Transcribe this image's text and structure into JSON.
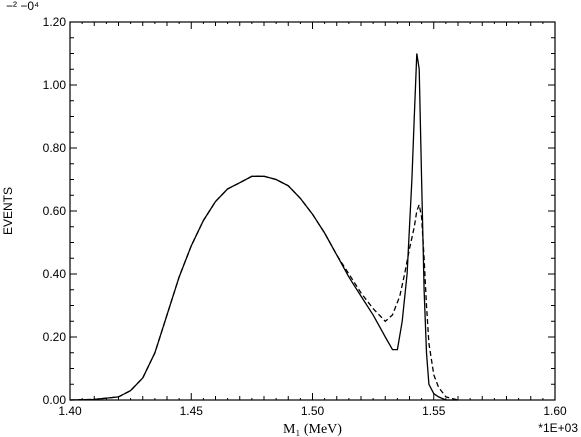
{
  "chart_data": {
    "type": "line",
    "xlabel": "M₁ (MeV)",
    "ylabel": "EVENTS",
    "y_scale_note": "−² −0⁴",
    "x_scale_note": "*1E+03",
    "xlim": [
      1.4,
      1.6
    ],
    "ylim": [
      0.0,
      1.2
    ],
    "x_ticks": [
      "1.40",
      "1.45",
      "1.50",
      "1.55",
      "1.60"
    ],
    "x_tick_values": [
      1.4,
      1.45,
      1.5,
      1.55,
      1.6
    ],
    "y_ticks": [
      "0.00",
      "0.20",
      "0.40",
      "0.60",
      "0.80",
      "1.00",
      "1.20"
    ],
    "y_tick_values": [
      0.0,
      0.2,
      0.4,
      0.6,
      0.8,
      1.0,
      1.2
    ],
    "grid": false,
    "series": [
      {
        "style": "solid",
        "x": [
          1.4,
          1.41,
          1.42,
          1.425,
          1.43,
          1.435,
          1.44,
          1.445,
          1.45,
          1.455,
          1.46,
          1.465,
          1.47,
          1.475,
          1.48,
          1.485,
          1.49,
          1.495,
          1.5,
          1.505,
          1.51,
          1.515,
          1.52,
          1.525,
          1.53,
          1.533,
          1.535,
          1.537,
          1.539,
          1.54,
          1.541,
          1.542,
          1.543,
          1.544,
          1.545,
          1.546,
          1.547,
          1.548,
          1.55,
          1.552,
          1.555,
          1.56
        ],
        "y": [
          0.0,
          0.002,
          0.01,
          0.03,
          0.07,
          0.15,
          0.27,
          0.39,
          0.49,
          0.57,
          0.63,
          0.67,
          0.69,
          0.71,
          0.71,
          0.7,
          0.68,
          0.64,
          0.59,
          0.53,
          0.46,
          0.39,
          0.33,
          0.27,
          0.2,
          0.16,
          0.16,
          0.25,
          0.4,
          0.55,
          0.7,
          0.9,
          1.1,
          1.05,
          0.7,
          0.35,
          0.15,
          0.05,
          0.02,
          0.01,
          0.0,
          0.0
        ]
      },
      {
        "style": "dashed",
        "x": [
          1.4,
          1.41,
          1.42,
          1.425,
          1.43,
          1.435,
          1.44,
          1.445,
          1.45,
          1.455,
          1.46,
          1.465,
          1.47,
          1.475,
          1.48,
          1.485,
          1.49,
          1.495,
          1.5,
          1.505,
          1.51,
          1.515,
          1.52,
          1.525,
          1.53,
          1.533,
          1.536,
          1.538,
          1.54,
          1.542,
          1.543,
          1.544,
          1.545,
          1.546,
          1.547,
          1.548,
          1.55,
          1.552,
          1.555,
          1.56
        ],
        "y": [
          0.0,
          0.002,
          0.01,
          0.03,
          0.07,
          0.15,
          0.27,
          0.39,
          0.49,
          0.57,
          0.63,
          0.67,
          0.69,
          0.71,
          0.71,
          0.7,
          0.68,
          0.64,
          0.59,
          0.53,
          0.46,
          0.4,
          0.34,
          0.29,
          0.25,
          0.27,
          0.33,
          0.4,
          0.48,
          0.55,
          0.6,
          0.62,
          0.58,
          0.45,
          0.3,
          0.18,
          0.08,
          0.04,
          0.01,
          0.0
        ]
      }
    ]
  }
}
